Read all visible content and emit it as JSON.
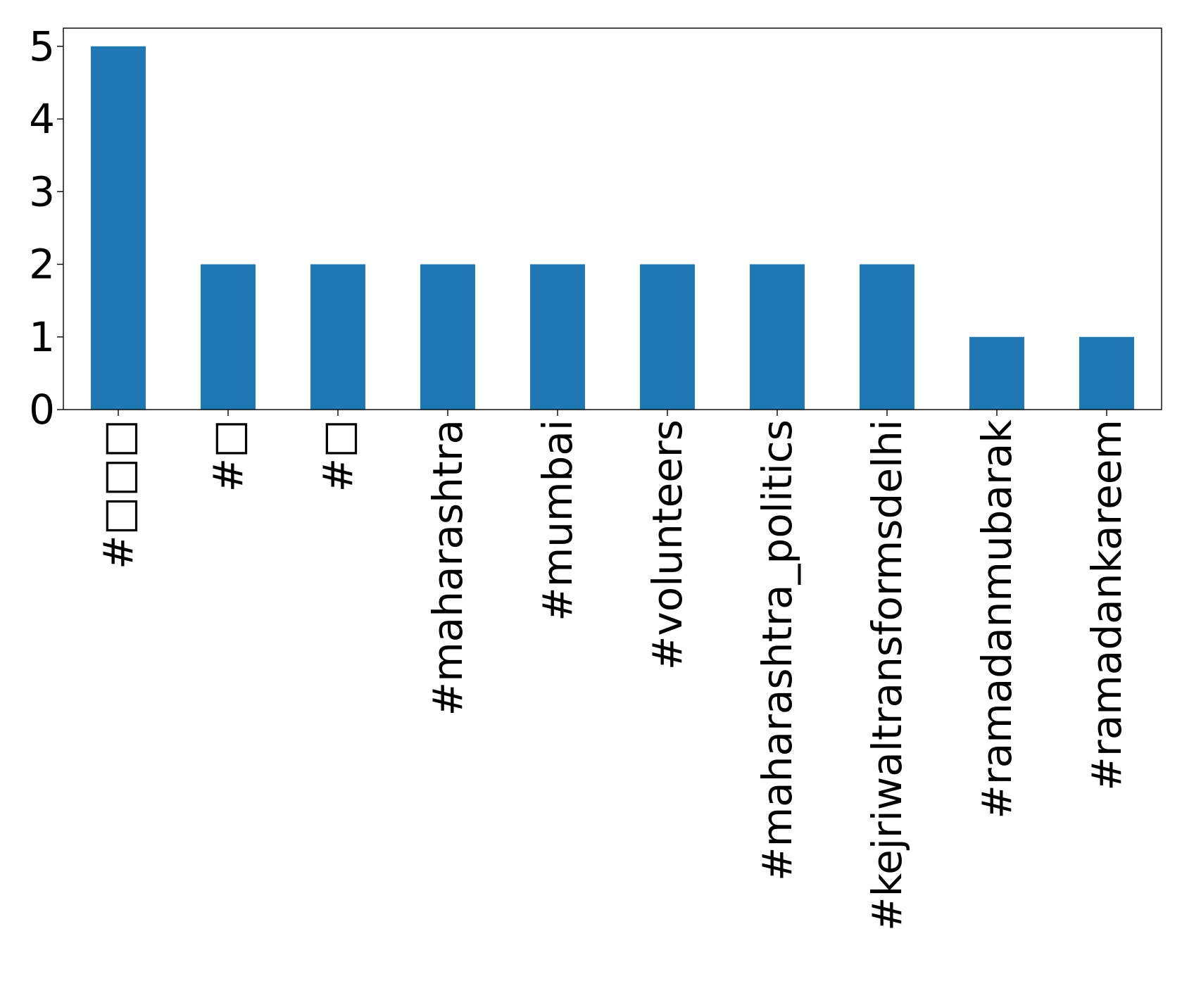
{
  "chart_data": {
    "type": "bar",
    "title": "",
    "xlabel": "",
    "ylabel": "",
    "categories": [
      "#□□□",
      "#□",
      "#□",
      "#maharashtra",
      "#mumbai",
      "#volunteers",
      "#maharashtra_politics",
      "#kejriwaltransformsdelhi",
      "#ramadanmubarak",
      "#ramadankareem"
    ],
    "values": [
      5,
      2,
      2,
      2,
      2,
      2,
      2,
      2,
      1,
      1
    ],
    "ylim": [
      0,
      5.25
    ],
    "yticks": [
      0,
      1,
      2,
      3,
      4,
      5
    ],
    "grid": false,
    "legend": "none",
    "bar_color": "#1f77b4",
    "x_tick_rotation": "vertical"
  }
}
